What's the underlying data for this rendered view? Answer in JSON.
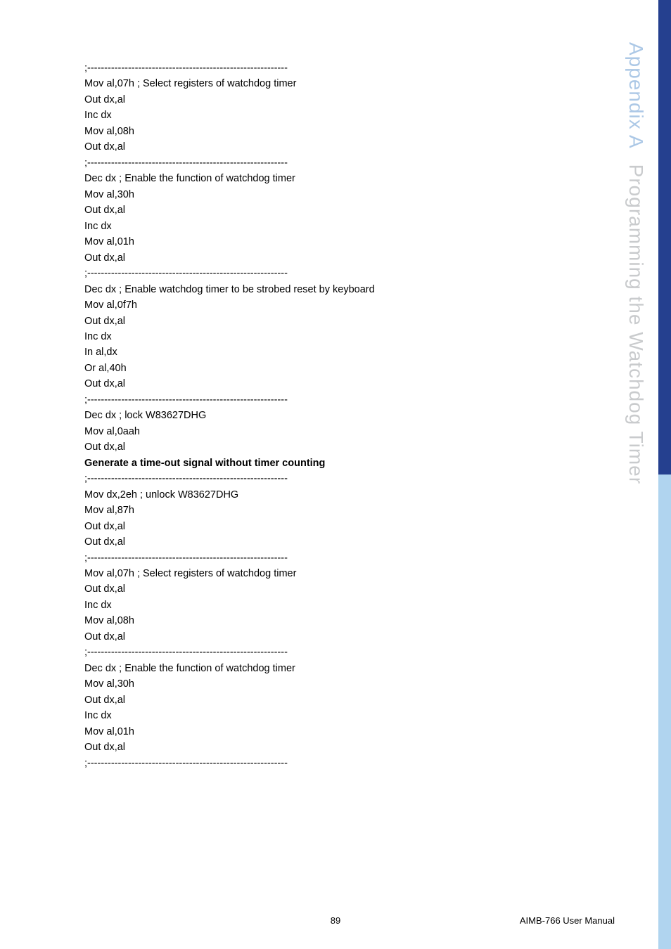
{
  "sidebar": {
    "part1": "Appendix A",
    "part2": "Programming the Watchdog Timer",
    "dark_color": "#25408f",
    "light_color": "#b0d4ef",
    "part1_color": "#acc8e6",
    "part2_color": "#c9cbcd",
    "fontsize": 28
  },
  "body": {
    "font_family": "Arial",
    "fontsize": 14.5,
    "line_height": 1.55,
    "color": "#000000"
  },
  "lines": [
    ";-----------------------------------------------------------",
    "Mov al,07h ; Select registers of watchdog timer",
    "Out dx,al",
    "Inc dx",
    "Mov al,08h",
    "Out dx,al",
    ";-----------------------------------------------------------",
    "Dec dx ; Enable the function of watchdog timer",
    "Mov al,30h",
    "Out dx,al",
    "Inc dx",
    "Mov al,01h",
    "Out dx,al",
    ";-----------------------------------------------------------",
    "Dec dx ; Enable watchdog timer to be strobed reset by keyboard",
    "Mov al,0f7h",
    "Out dx,al",
    "Inc dx",
    "In al,dx",
    "Or al,40h",
    "Out dx,al",
    ";-----------------------------------------------------------",
    "Dec dx ; lock W83627DHG",
    "Mov al,0aah",
    "Out dx,al"
  ],
  "bold_line": "Generate a time-out signal without timer counting",
  "lines2": [
    ";-----------------------------------------------------------",
    "Mov dx,2eh ; unlock W83627DHG",
    "Mov al,87h",
    "Out dx,al",
    "Out dx,al",
    ";-----------------------------------------------------------",
    "Mov al,07h ; Select registers of watchdog timer",
    "Out dx,al",
    "Inc dx",
    "Mov al,08h",
    "Out dx,al",
    ";-----------------------------------------------------------",
    "Dec dx ; Enable the function of watchdog timer",
    "Mov al,30h",
    "Out dx,al",
    "Inc dx",
    "Mov al,01h",
    "Out dx,al",
    ";-----------------------------------------------------------"
  ],
  "footer": {
    "page": "89",
    "manual": "AIMB-766 User Manual"
  }
}
